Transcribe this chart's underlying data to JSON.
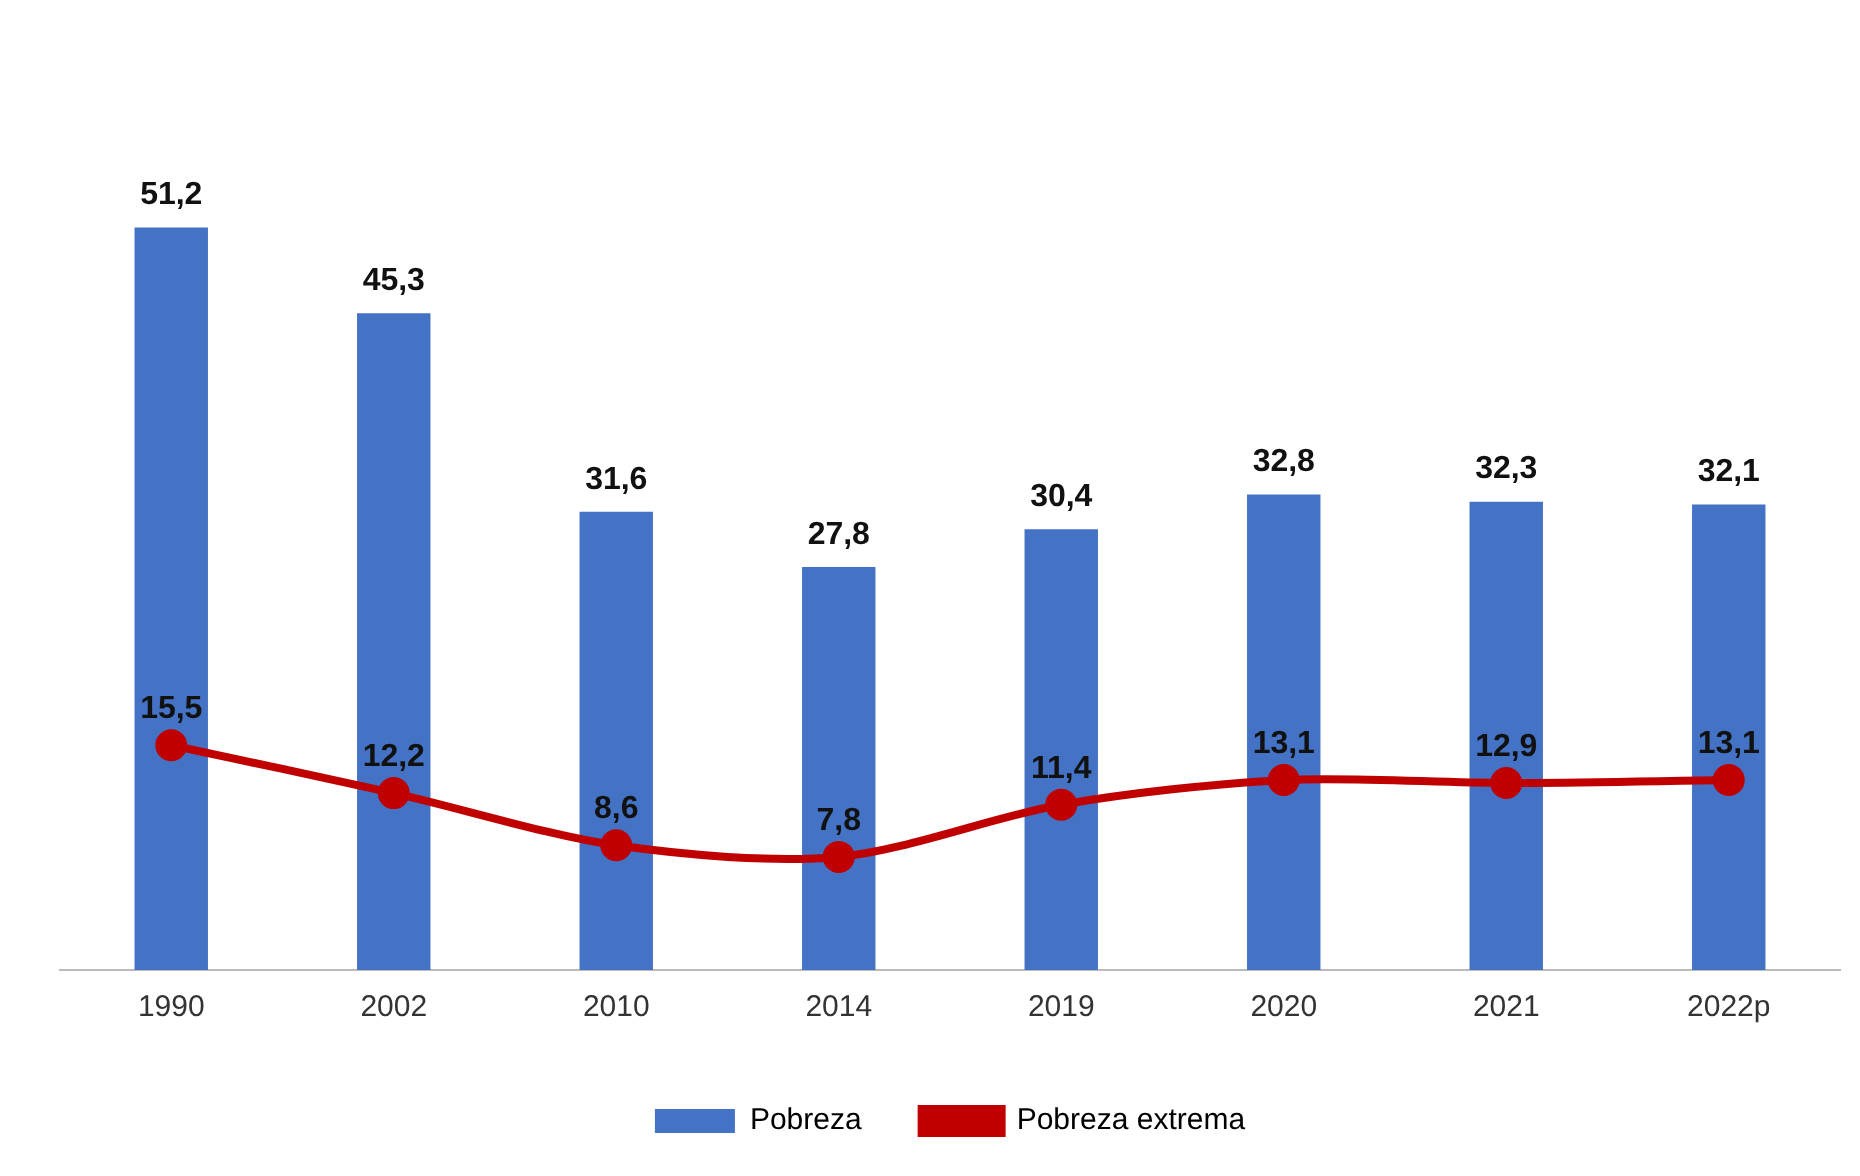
{
  "chart_data": {
    "type": "bar",
    "categories": [
      "1990",
      "2002",
      "2010",
      "2014",
      "2019",
      "2020",
      "2021",
      "2022p"
    ],
    "series": [
      {
        "name": "Pobreza",
        "color": "#4472c4",
        "values": [
          51.2,
          45.3,
          31.6,
          27.8,
          30.4,
          32.8,
          32.3,
          32.1
        ],
        "value_labels": [
          "51,2",
          "45,3",
          "31,6",
          "27,8",
          "30,4",
          "32,8",
          "32,3",
          "32,1"
        ]
      },
      {
        "name": "Pobreza extrema",
        "type": "line",
        "color": "#c00000",
        "values": [
          15.5,
          12.2,
          8.6,
          7.8,
          11.4,
          13.1,
          12.9,
          13.1
        ],
        "value_labels": [
          "15,5",
          "12,2",
          "8,6",
          "7,8",
          "11,4",
          "13,1",
          "12,9",
          "13,1"
        ]
      }
    ],
    "tick_labels": "x",
    "grid": false,
    "legend": "bottom",
    "marker": "circle",
    "line_style": "solid"
  }
}
